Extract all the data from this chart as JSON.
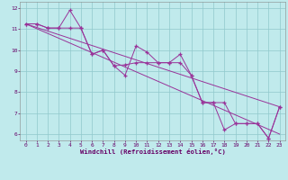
{
  "xlabel": "Windchill (Refroidissement éolien,°C)",
  "bg_color": "#c0eaec",
  "grid_color": "#90c8cc",
  "line_color": "#993399",
  "xlim": [
    -0.5,
    23.5
  ],
  "ylim": [
    5.7,
    12.3
  ],
  "xticks": [
    0,
    1,
    2,
    3,
    4,
    5,
    6,
    7,
    8,
    9,
    10,
    11,
    12,
    13,
    14,
    15,
    16,
    17,
    18,
    19,
    20,
    21,
    22,
    23
  ],
  "yticks": [
    6,
    7,
    8,
    9,
    10,
    11,
    12
  ],
  "line1_x": [
    0,
    1,
    2,
    3,
    4,
    5,
    6,
    7,
    8,
    9,
    10,
    11,
    12,
    13,
    14,
    15,
    16,
    17,
    18,
    19,
    20,
    21,
    22,
    23
  ],
  "line1_y": [
    11.25,
    11.25,
    11.05,
    11.05,
    11.9,
    11.05,
    9.8,
    10.0,
    9.25,
    8.8,
    10.2,
    9.9,
    9.4,
    9.4,
    9.8,
    8.8,
    7.5,
    7.5,
    7.5,
    6.5,
    6.5,
    6.5,
    5.8,
    7.3
  ],
  "line2_x": [
    0,
    1,
    2,
    3,
    4,
    5,
    6,
    7,
    8,
    9,
    10,
    11,
    12,
    13,
    14,
    15,
    16,
    17,
    18,
    19,
    20,
    21,
    22,
    23
  ],
  "line2_y": [
    11.25,
    11.25,
    11.05,
    11.05,
    11.05,
    11.05,
    9.8,
    10.0,
    9.25,
    9.3,
    9.4,
    9.4,
    9.4,
    9.4,
    9.4,
    8.8,
    7.5,
    7.5,
    6.2,
    6.5,
    6.5,
    6.5,
    5.8,
    7.3
  ],
  "line3_x": [
    0,
    23
  ],
  "line3_y": [
    11.25,
    7.3
  ],
  "line4_x": [
    0,
    23
  ],
  "line4_y": [
    11.25,
    6.0
  ],
  "figsize": [
    3.2,
    2.0
  ],
  "dpi": 100
}
